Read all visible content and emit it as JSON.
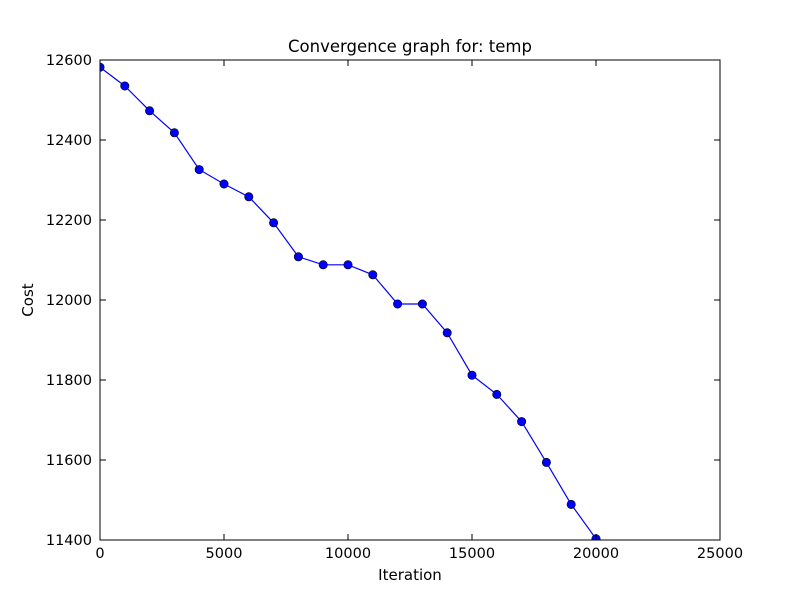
{
  "chart_data": {
    "type": "line",
    "title": "Convergence graph for: temp",
    "xlabel": "Iteration",
    "ylabel": "Cost",
    "xlim": [
      0,
      25000
    ],
    "ylim": [
      11400,
      12600
    ],
    "xticks": [
      "0",
      "5000",
      "10000",
      "15000",
      "20000",
      "25000"
    ],
    "yticks": [
      "11400",
      "11600",
      "11800",
      "12000",
      "12200",
      "12400",
      "12600"
    ],
    "grid": false,
    "series": [
      {
        "color": "#0000ff",
        "marker": "circle",
        "x": [
          0,
          1000,
          2000,
          3000,
          4000,
          5000,
          6000,
          7000,
          8000,
          9000,
          10000,
          11000,
          12000,
          13000,
          14000,
          15000,
          16000,
          17000,
          18000,
          19000,
          20000
        ],
        "y": [
          12582,
          12535,
          12473,
          12418,
          12326,
          12290,
          12258,
          12193,
          12108,
          12088,
          12088,
          12063,
          11990,
          11990,
          11918,
          11812,
          11764,
          11696,
          11594,
          11489,
          11403
        ]
      }
    ]
  }
}
